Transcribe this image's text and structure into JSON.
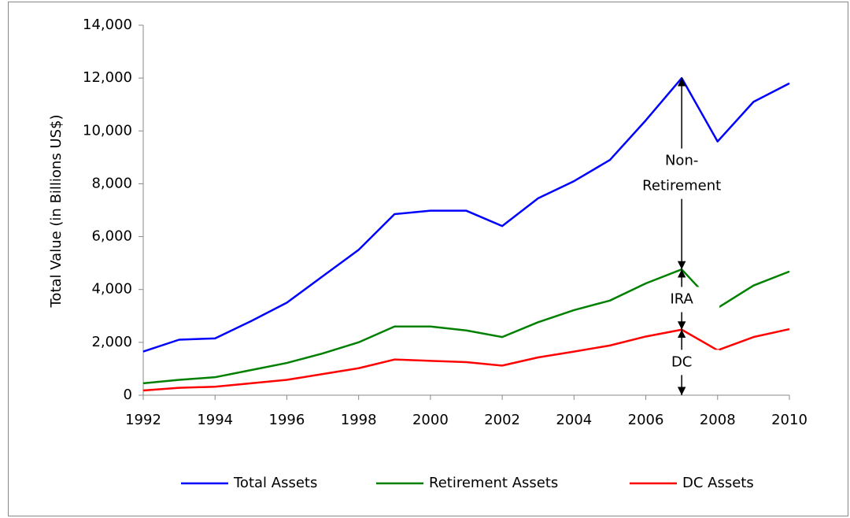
{
  "chart_data": {
    "type": "line",
    "y_label": "Total Value (in Billions US$)",
    "x": [
      1992,
      1993,
      1994,
      1995,
      1996,
      1997,
      1998,
      1999,
      2000,
      2001,
      2002,
      2003,
      2004,
      2005,
      2006,
      2007,
      2008,
      2009,
      2010
    ],
    "series": [
      {
        "name": "Total Assets",
        "color": "#0000ff",
        "values": [
          1650,
          2100,
          2150,
          2800,
          3500,
          4500,
          5500,
          6850,
          6980,
          6980,
          6400,
          7450,
          8100,
          8900,
          10400,
          12000,
          9600,
          11100,
          11800
        ]
      },
      {
        "name": "Retirement Assets",
        "color": "#008000",
        "values": [
          450,
          580,
          680,
          950,
          1220,
          1580,
          2000,
          2600,
          2600,
          2450,
          2200,
          2760,
          3220,
          3580,
          4230,
          4760,
          3300,
          4150,
          4680
        ]
      },
      {
        "name": "DC Assets",
        "color": "#ff0000",
        "values": [
          180,
          280,
          320,
          450,
          580,
          800,
          1020,
          1350,
          1300,
          1250,
          1120,
          1430,
          1650,
          1880,
          2220,
          2480,
          1700,
          2200,
          2500
        ]
      }
    ],
    "xlim": [
      1992,
      2010
    ],
    "xticks": [
      1992,
      1994,
      1996,
      1998,
      2000,
      2002,
      2004,
      2006,
      2008,
      2010
    ],
    "ylim": [
      0,
      14000
    ],
    "yticks": [
      0,
      {
        "value": 2000,
        "label": "2,000"
      },
      {
        "value": 4000,
        "label": "4,000"
      },
      {
        "value": 6000,
        "label": "6,000"
      },
      {
        "value": 8000,
        "label": "8,000"
      },
      {
        "value": 10000,
        "label": "10,000"
      },
      {
        "value": 12000,
        "label": "12,000"
      },
      {
        "value": 14000,
        "label": "14,000"
      }
    ],
    "annotations": [
      {
        "lines": [
          "Non-",
          "Retirement"
        ]
      },
      {
        "lines": [
          "IRA"
        ]
      },
      {
        "lines": [
          "DC"
        ]
      }
    ],
    "legend": "bottom"
  }
}
